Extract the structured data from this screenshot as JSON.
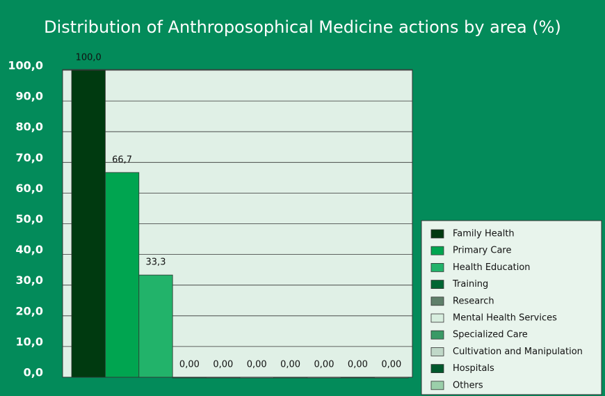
{
  "chart_data": {
    "type": "bar",
    "title": "Distribution of Anthroposophical Medicine actions by area (%)",
    "categories": [
      "Family Health",
      "Primary Care",
      "Health Education",
      "Training",
      "Research",
      "Mental Health Services",
      "Specialized Care",
      "Cultivation and Manipulation",
      "Hospitals",
      "Others"
    ],
    "values": [
      100,
      66.7,
      33.3,
      0,
      0,
      0,
      0,
      0,
      0,
      0
    ],
    "value_labels": [
      "100,0",
      "66,7",
      "33,3",
      "0,00",
      "0,00",
      "0,00",
      "0,00",
      "0,00",
      "0,00",
      "0,00"
    ],
    "colors": [
      "#003a10",
      "#00a550",
      "#22b36a",
      "#006633",
      "#5f7f6a",
      "#d8eedf",
      "#3a9a66",
      "#c0d8c8",
      "#00582c",
      "#9bcfaa"
    ],
    "ylim": [
      0,
      100
    ],
    "yticks": [
      {
        "value": 0,
        "label": "0,0"
      },
      {
        "value": 10,
        "label": "10,0"
      },
      {
        "value": 20,
        "label": "20,0"
      },
      {
        "value": 30,
        "label": "30,0"
      },
      {
        "value": 40,
        "label": "40,0"
      },
      {
        "value": 50,
        "label": "50,0"
      },
      {
        "value": 60,
        "label": "60,0"
      },
      {
        "value": 70,
        "label": "70,0"
      },
      {
        "value": 80,
        "label": "80,0"
      },
      {
        "value": 90,
        "label": "90,0"
      },
      {
        "value": 100,
        "label": "100,0"
      }
    ],
    "grid": true,
    "legend": "right"
  }
}
